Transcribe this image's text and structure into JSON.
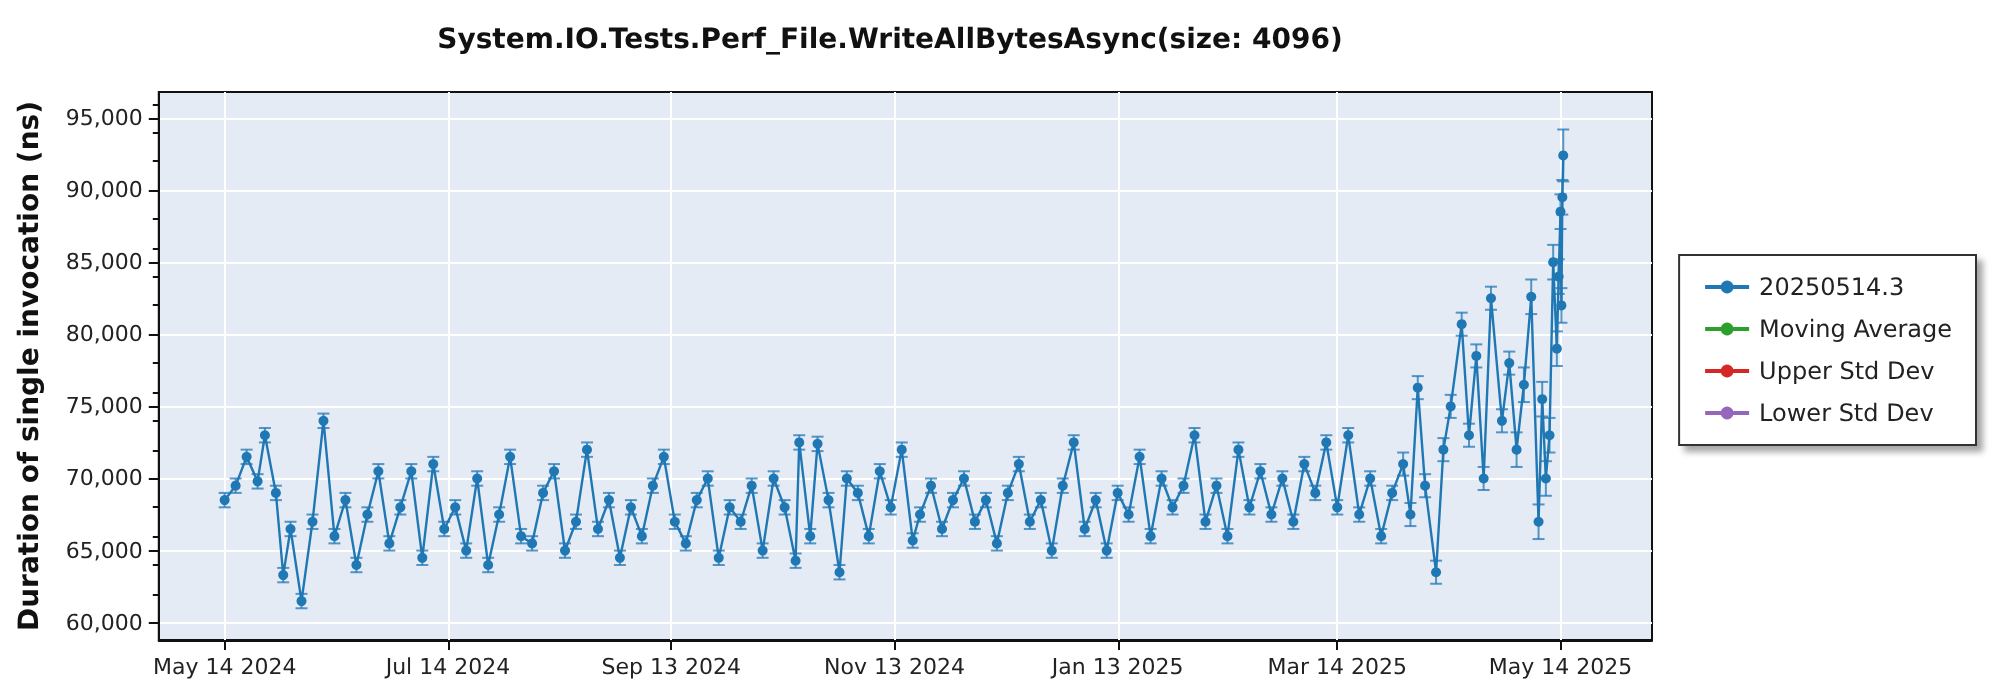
{
  "chart_data": {
    "type": "line",
    "title": "System.IO.Tests.Perf_File.WriteAllBytesAsync(size: 4096)",
    "ylabel": "Duration of single invocation (ns)",
    "xlim": [
      "2024-04-26",
      "2025-06-08"
    ],
    "xticks": [
      {
        "value": "2024-05-14",
        "label": "May 14 2024"
      },
      {
        "value": "2024-07-14",
        "label": "Jul 14 2024"
      },
      {
        "value": "2024-09-13",
        "label": "Sep 13 2024"
      },
      {
        "value": "2024-11-13",
        "label": "Nov 13 2024"
      },
      {
        "value": "2025-01-13",
        "label": "Jan 13 2025"
      },
      {
        "value": "2025-03-14",
        "label": "Mar 14 2025"
      },
      {
        "value": "2025-05-14",
        "label": "May 14 2025"
      }
    ],
    "ylim": [
      58800,
      96800
    ],
    "yticks": [
      {
        "value": 60000,
        "label": "60,000"
      },
      {
        "value": 65000,
        "label": "65,000"
      },
      {
        "value": 70000,
        "label": "70,000"
      },
      {
        "value": 75000,
        "label": "75,000"
      },
      {
        "value": 80000,
        "label": "80,000"
      },
      {
        "value": 85000,
        "label": "85,000"
      },
      {
        "value": 90000,
        "label": "90,000"
      },
      {
        "value": 95000,
        "label": "95,000"
      }
    ],
    "grid": true,
    "legend": "right",
    "marker": "circle",
    "line_style": "solid",
    "series": [
      {
        "name": "20250514.3",
        "color": "#1f77b4",
        "x": [
          "2024-05-14",
          "2024-05-17",
          "2024-05-20",
          "2024-05-23",
          "2024-05-25",
          "2024-05-28",
          "2024-05-30",
          "2024-06-01",
          "2024-06-04",
          "2024-06-07",
          "2024-06-10",
          "2024-06-13",
          "2024-06-16",
          "2024-06-19",
          "2024-06-22",
          "2024-06-25",
          "2024-06-28",
          "2024-07-01",
          "2024-07-04",
          "2024-07-07",
          "2024-07-10",
          "2024-07-13",
          "2024-07-16",
          "2024-07-19",
          "2024-07-22",
          "2024-07-25",
          "2024-07-28",
          "2024-07-31",
          "2024-08-03",
          "2024-08-06",
          "2024-08-09",
          "2024-08-12",
          "2024-08-15",
          "2024-08-18",
          "2024-08-21",
          "2024-08-24",
          "2024-08-27",
          "2024-08-30",
          "2024-09-02",
          "2024-09-05",
          "2024-09-08",
          "2024-09-11",
          "2024-09-14",
          "2024-09-17",
          "2024-09-20",
          "2024-09-23",
          "2024-09-26",
          "2024-09-29",
          "2024-10-02",
          "2024-10-05",
          "2024-10-08",
          "2024-10-11",
          "2024-10-14",
          "2024-10-17",
          "2024-10-18",
          "2024-10-21",
          "2024-10-23",
          "2024-10-26",
          "2024-10-29",
          "2024-10-31",
          "2024-11-03",
          "2024-11-06",
          "2024-11-09",
          "2024-11-12",
          "2024-11-15",
          "2024-11-18",
          "2024-11-20",
          "2024-11-23",
          "2024-11-26",
          "2024-11-29",
          "2024-12-02",
          "2024-12-05",
          "2024-12-08",
          "2024-12-11",
          "2024-12-14",
          "2024-12-17",
          "2024-12-20",
          "2024-12-23",
          "2024-12-26",
          "2024-12-29",
          "2025-01-01",
          "2025-01-04",
          "2025-01-07",
          "2025-01-10",
          "2025-01-13",
          "2025-01-16",
          "2025-01-19",
          "2025-01-22",
          "2025-01-25",
          "2025-01-28",
          "2025-01-31",
          "2025-02-03",
          "2025-02-06",
          "2025-02-09",
          "2025-02-12",
          "2025-02-15",
          "2025-02-18",
          "2025-02-21",
          "2025-02-24",
          "2025-02-27",
          "2025-03-02",
          "2025-03-05",
          "2025-03-08",
          "2025-03-11",
          "2025-03-14",
          "2025-03-17",
          "2025-03-20",
          "2025-03-23",
          "2025-03-26",
          "2025-03-29",
          "2025-04-01",
          "2025-04-03",
          "2025-04-05",
          "2025-04-07",
          "2025-04-10",
          "2025-04-12",
          "2025-04-14",
          "2025-04-17",
          "2025-04-19",
          "2025-04-21",
          "2025-04-23",
          "2025-04-25",
          "2025-04-28",
          "2025-04-30",
          "2025-05-02",
          "2025-05-04",
          "2025-05-06",
          "2025-05-08",
          "2025-05-09",
          "2025-05-10",
          "2025-05-11",
          "2025-05-12",
          "2025-05-13",
          "2025-05-13T12:00",
          "2025-05-14",
          "2025-05-14T06:00",
          "2025-05-14T12:00",
          "2025-05-14T18:00"
        ],
        "values": [
          68500,
          69500,
          71500,
          69800,
          73000,
          69000,
          63300,
          66500,
          61500,
          67000,
          74000,
          66000,
          68500,
          64000,
          67500,
          70500,
          65500,
          68000,
          70500,
          64500,
          71000,
          66500,
          68000,
          65000,
          70000,
          64000,
          67500,
          71500,
          66000,
          65500,
          69000,
          70500,
          65000,
          67000,
          72000,
          66500,
          68500,
          64500,
          68000,
          66000,
          69500,
          71500,
          67000,
          65500,
          68500,
          70000,
          64500,
          68000,
          67000,
          69500,
          65000,
          70000,
          68000,
          64300,
          72500,
          66000,
          72400,
          68500,
          63500,
          70000,
          69000,
          66000,
          70500,
          68000,
          72000,
          65700,
          67500,
          69500,
          66500,
          68500,
          70000,
          67000,
          68500,
          65500,
          69000,
          71000,
          67000,
          68500,
          65000,
          69500,
          72500,
          66500,
          68500,
          65000,
          69000,
          67500,
          71500,
          66000,
          70000,
          68000,
          69500,
          73000,
          67000,
          69500,
          66000,
          72000,
          68000,
          70500,
          67500,
          70000,
          67000,
          71000,
          69000,
          72500,
          68000,
          73000,
          67500,
          70000,
          66000,
          69000,
          71000,
          67500,
          76300,
          69500,
          63500,
          72000,
          75000,
          80700,
          73000,
          78500,
          70000,
          82500,
          74000,
          78000,
          72000,
          76500,
          82600,
          67000,
          75500,
          70000,
          73000,
          85000,
          79000,
          84000,
          88500,
          82000,
          89500,
          92400
        ],
        "errors": [
          500,
          500,
          500,
          500,
          500,
          500,
          500,
          500,
          500,
          500,
          500,
          500,
          500,
          500,
          500,
          500,
          500,
          500,
          500,
          500,
          500,
          500,
          500,
          500,
          500,
          500,
          500,
          500,
          500,
          500,
          500,
          500,
          500,
          500,
          500,
          500,
          500,
          500,
          500,
          500,
          500,
          500,
          500,
          500,
          500,
          500,
          500,
          500,
          500,
          500,
          500,
          500,
          500,
          500,
          500,
          500,
          500,
          500,
          500,
          500,
          500,
          500,
          500,
          500,
          500,
          500,
          500,
          500,
          500,
          500,
          500,
          500,
          500,
          500,
          500,
          500,
          500,
          500,
          500,
          500,
          500,
          500,
          500,
          500,
          500,
          500,
          500,
          500,
          500,
          500,
          500,
          500,
          500,
          500,
          500,
          500,
          500,
          500,
          500,
          500,
          500,
          500,
          500,
          500,
          500,
          500,
          500,
          500,
          500,
          500,
          800,
          800,
          800,
          800,
          800,
          800,
          800,
          800,
          800,
          800,
          800,
          800,
          800,
          800,
          1200,
          1200,
          1200,
          1200,
          1200,
          1200,
          1200,
          1200,
          1200,
          1200,
          1200,
          1200,
          1200,
          1800
        ]
      },
      {
        "name": "Moving Average",
        "color": "#2ca02c"
      },
      {
        "name": "Upper Std Dev",
        "color": "#d62728"
      },
      {
        "name": "Lower Std Dev",
        "color": "#9467bd"
      }
    ]
  }
}
